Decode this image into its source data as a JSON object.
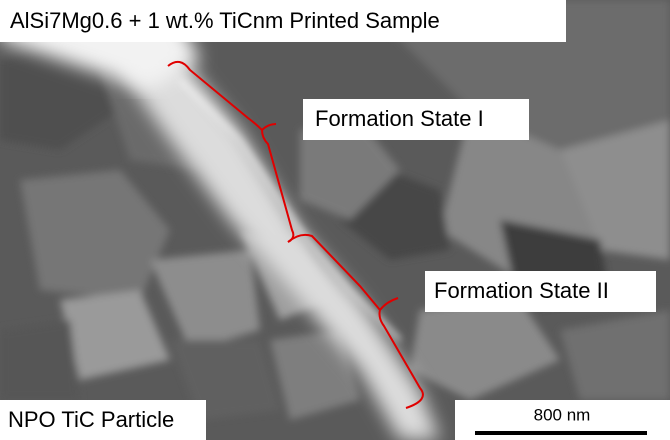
{
  "title": "AlSi7Mg0.6 + 1 wt.% TiCnm Printed Sample",
  "annotations": [
    "Formation State I",
    "Formation State II"
  ],
  "caption": "NPO TiC Particle",
  "scale_bar": {
    "label": "800 nm"
  }
}
